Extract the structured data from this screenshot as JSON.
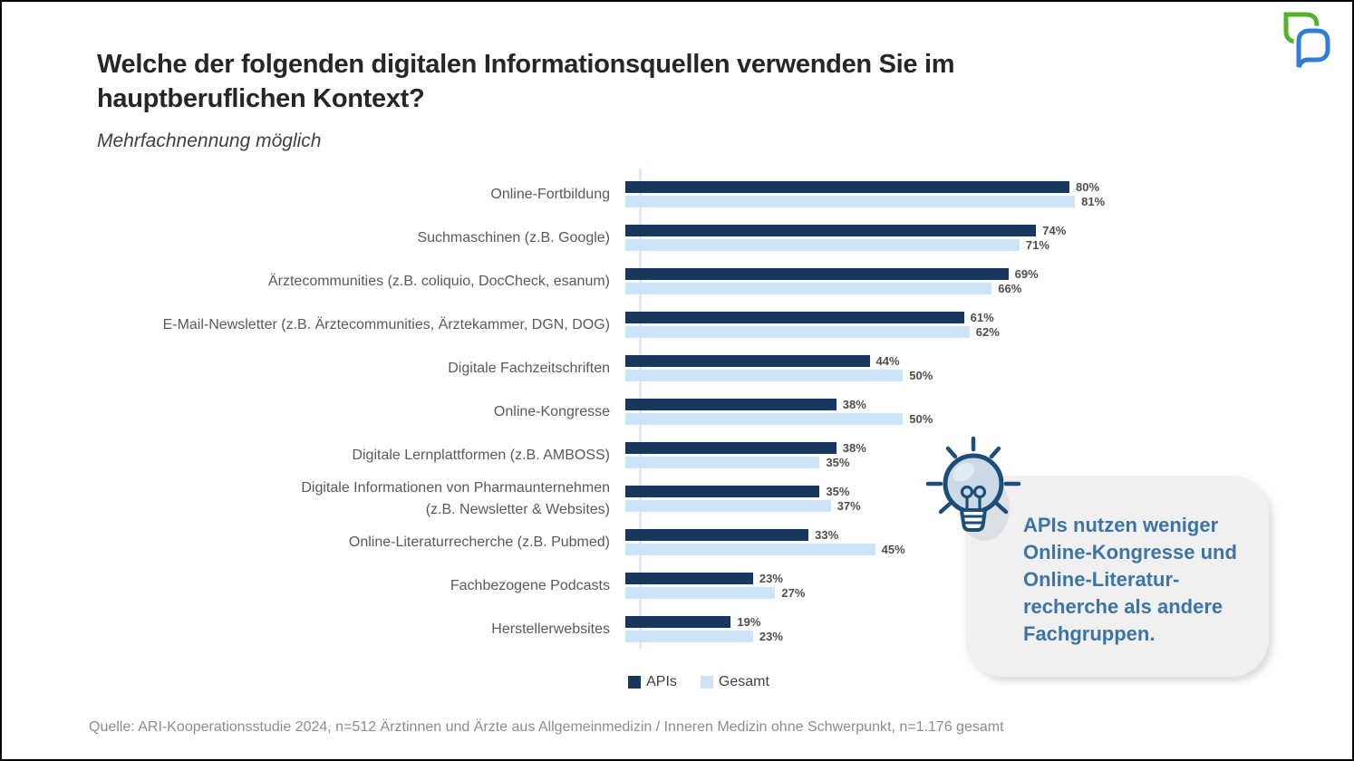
{
  "page": {
    "callout_text": "APIs nutzen weniger\nOnline-Kongresse und\nOnline-Literatur-\nrecherche als andere\nFachgruppen."
  },
  "chart_data": {
    "type": "bar",
    "orientation": "horizontal",
    "title": "Welche der folgenden digitalen Informationsquellen verwenden Sie im\nhauptberuflichen Kontext?",
    "subtitle": "Mehrfachnennung möglich",
    "source": "Quelle: ARI-Kooperationsstudie 2024, n=512 Ärztinnen und Ärzte aus Allgemeinmedizin / Inneren Medizin ohne Schwerpunkt, n=1.176 gesamt",
    "unit": "%",
    "xlim": [
      0,
      100
    ],
    "grid": false,
    "value_labels": true,
    "legend_position": "bottom",
    "categories": [
      "Online-Fortbildung",
      "Suchmaschinen (z.B. Google)",
      "Ärztecommunities (z.B. coliquio, DocCheck, esanum)",
      "E-Mail-Newsletter (z.B. Ärztecommunities, Ärztekammer, DGN, DOG)",
      "Digitale Fachzeitschriften",
      "Online-Kongresse",
      "Digitale Lernplattformen (z.B. AMBOSS)",
      "Digitale Informationen von Pharmaunternehmen\n(z.B. Newsletter & Websites)",
      "Online-Literaturrecherche (z.B. Pubmed)",
      "Fachbezogene Podcasts",
      "Herstellerwebsites"
    ],
    "series": [
      {
        "name": "APIs",
        "color": "#17375e",
        "values": [
          80,
          74,
          69,
          61,
          44,
          38,
          38,
          35,
          33,
          23,
          19
        ]
      },
      {
        "name": "Gesamt",
        "color": "#cde3f7",
        "values": [
          81,
          71,
          66,
          62,
          50,
          50,
          35,
          37,
          45,
          27,
          23
        ]
      }
    ]
  },
  "colors": {
    "apis_bar": "#17375e",
    "gesamt_bar": "#cde3f7",
    "callout_text": "#3c74a6",
    "callout_background": "#f0f0f0",
    "bulb_outline": "#1d4e79",
    "logo_green": "#55b22a",
    "logo_blue": "#2f7ed3"
  }
}
